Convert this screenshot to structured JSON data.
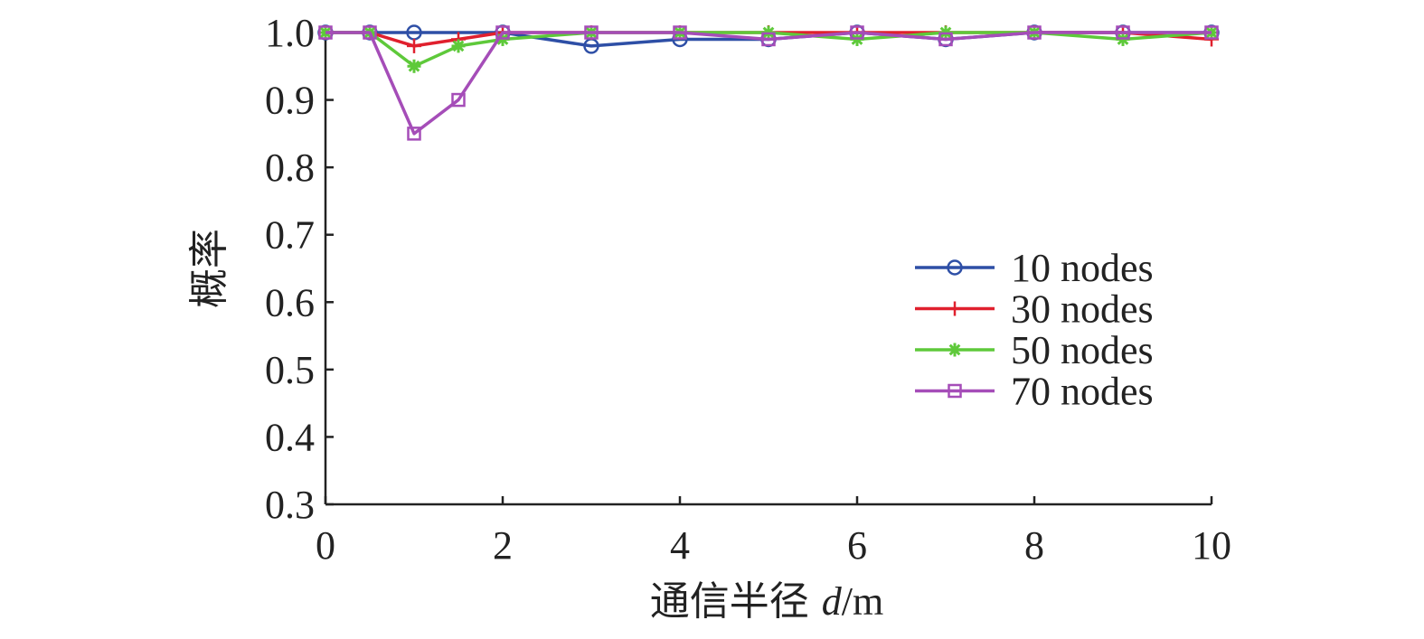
{
  "chart_data": {
    "type": "line",
    "xlabel_text": "通信半径 ",
    "xlabel_var": "d",
    "xlabel_unit": "/m",
    "ylabel": "概率",
    "xlim": [
      0,
      10
    ],
    "ylim": [
      0.3,
      1.0
    ],
    "xticks": [
      "0",
      "2",
      "4",
      "6",
      "8",
      "10"
    ],
    "yticks": [
      "1.0",
      "0.9",
      "0.8",
      "0.7",
      "0.6",
      "0.5",
      "0.4",
      "0.3"
    ],
    "legend_position": "right-middle",
    "grid": false,
    "series": [
      {
        "name": "10 nodes",
        "color": "#2e4fa6",
        "marker": "circle",
        "x": [
          0,
          0.5,
          1,
          2,
          3,
          4,
          5,
          6,
          7,
          8,
          9,
          10
        ],
        "y": [
          1.0,
          1.0,
          1.0,
          1.0,
          0.98,
          0.99,
          0.99,
          1.0,
          0.99,
          1.0,
          1.0,
          1.0
        ]
      },
      {
        "name": "30 nodes",
        "color": "#e0202e",
        "marker": "plus",
        "x": [
          0,
          0.5,
          1,
          1.5,
          2,
          3,
          4,
          5,
          6,
          7,
          8,
          9,
          10
        ],
        "y": [
          1.0,
          1.0,
          0.98,
          0.99,
          1.0,
          1.0,
          1.0,
          1.0,
          1.0,
          1.0,
          1.0,
          1.0,
          0.99
        ]
      },
      {
        "name": "50 nodes",
        "color": "#5ec93a",
        "marker": "asterisk",
        "x": [
          0,
          0.5,
          1,
          1.5,
          2,
          3,
          4,
          5,
          6,
          7,
          8,
          9,
          10
        ],
        "y": [
          1.0,
          1.0,
          0.95,
          0.98,
          0.99,
          1.0,
          1.0,
          1.0,
          0.99,
          1.0,
          1.0,
          0.99,
          1.0
        ]
      },
      {
        "name": "70 nodes",
        "color": "#a54db8",
        "marker": "square",
        "x": [
          0,
          0.5,
          1,
          1.5,
          2,
          3,
          4,
          5,
          6,
          7,
          8,
          9,
          10
        ],
        "y": [
          1.0,
          1.0,
          0.85,
          0.9,
          1.0,
          1.0,
          1.0,
          0.99,
          1.0,
          0.99,
          1.0,
          1.0,
          1.0
        ]
      }
    ]
  }
}
